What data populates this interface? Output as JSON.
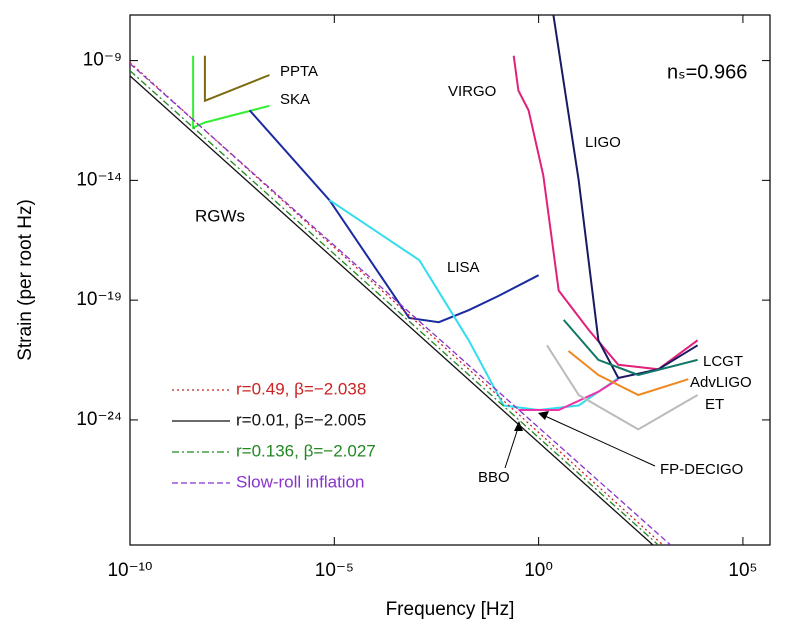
{
  "chart_data": {
    "type": "line",
    "xscale": "log",
    "yscale": "log",
    "x_label": "Frequency [Hz]",
    "y_label": "Strain (per root Hz)",
    "xlim": [
      1e-10,
      460000.0
    ],
    "ylim": [
      6e-30,
      8e-08
    ],
    "xticks": [
      {
        "value": 1e-10,
        "label": "10⁻¹⁰"
      },
      {
        "value": 1e-05,
        "label": "10⁻⁵"
      },
      {
        "value": 1,
        "label": "10⁰"
      },
      {
        "value": 100000.0,
        "label": "10⁵"
      }
    ],
    "yticks": [
      {
        "value": 1e-24,
        "label": "10⁻²⁴"
      },
      {
        "value": 1e-19,
        "label": "10⁻¹⁹"
      },
      {
        "value": 1e-14,
        "label": "10⁻¹⁴"
      },
      {
        "value": 1e-09,
        "label": "10⁻⁹"
      }
    ],
    "annotations": [
      "RGWs",
      "nₛ=0.966"
    ],
    "series": [
      {
        "name": "r=0.49, β=−2.038",
        "color": "#cc2222",
        "style": "dotted",
        "x": [
          1e-10,
          1100.0
        ],
        "values": [
          8.3e-10,
          6e-30
        ]
      },
      {
        "name": "r=0.01, β=−2.005",
        "color": "#111111",
        "style": "solid",
        "x": [
          1e-10,
          630
        ],
        "values": [
          2.3e-10,
          6e-30
        ]
      },
      {
        "name": "r=0.136, β=−2.027",
        "color": "#228822",
        "style": "dashdot",
        "x": [
          1e-10,
          850
        ],
        "values": [
          3.8e-10,
          6e-30
        ]
      },
      {
        "name": "Slow-roll inflation",
        "color": "#8833cc",
        "style": "dashed",
        "x": [
          1e-10,
          1700.0
        ],
        "values": [
          7.5e-10,
          6e-30
        ]
      }
    ],
    "detectors": [
      {
        "name": "PPTA",
        "color": "#7a6a10",
        "x": [
          6.8e-09,
          6.8e-09,
          2.6e-07
        ],
        "values": [
          1.6e-09,
          2.1e-11,
          2.5e-10
        ]
      },
      {
        "name": "SKA",
        "color": "#33ee33",
        "x": [
          3.5e-09,
          3.5e-09,
          6.8e-09,
          2.6e-07
        ],
        "values": [
          1.6e-09,
          1.6e-12,
          2.6e-12,
          1.3e-11
        ]
      },
      {
        "name": "LISA",
        "color": "#1a2aa0",
        "x": [
          8.5e-08,
          7.6e-06,
          0.00068,
          0.0036,
          0.0195,
          0.105,
          1
        ],
        "values": [
          8.3e-12,
          1.5e-15,
          1.8e-20,
          1.2e-20,
          3.8e-20,
          1.5e-19,
          1.1e-18
        ]
      },
      {
        "name": "BBO",
        "color": "#33ddee",
        "x": [
          7.6e-06,
          0.0012,
          0.0195,
          0.14,
          1,
          9.6,
          89
        ],
        "values": [
          1.5e-15,
          4.7e-18,
          2.1e-21,
          4e-24,
          2.6e-24,
          4e-24,
          5.6e-23
        ]
      },
      {
        "name": "FP-DECIGO",
        "color": "#ee33aa",
        "x": [
          0.32,
          3.1,
          29,
          89
        ],
        "values": [
          2.6e-24,
          2.6e-24,
          1.5e-23,
          5e-23
        ]
      },
      {
        "name": "VIRGO",
        "color": "#e0207a",
        "x": [
          0.245,
          0.32,
          0.57,
          1.3,
          3.1,
          17,
          89,
          850,
          7800.0
        ],
        "values": [
          1.6e-09,
          5.6e-11,
          8.3e-12,
          1.6e-14,
          2.5e-19,
          5.6e-21,
          2e-22,
          1.3e-22,
          2.1e-21
        ]
      },
      {
        "name": "LIGO",
        "color": "#1a1a60",
        "x": [
          2.3,
          9.6,
          29,
          89,
          850,
          7800.0
        ],
        "values": [
          8e-08,
          1e-14,
          2.1e-21,
          5.6e-23,
          1.3e-22,
          1.3e-21
        ]
      },
      {
        "name": "LCGT",
        "color": "#117766",
        "x": [
          4.1,
          29,
          275,
          7800.0
        ],
        "values": [
          1.5e-20,
          3.2e-22,
          7.5e-23,
          3.2e-22
        ]
      },
      {
        "name": "AdvLIGO",
        "color": "#ee8822",
        "x": [
          5.4,
          29,
          275,
          4600.0
        ],
        "values": [
          7.5e-22,
          7.5e-23,
          1.1e-23,
          5e-23
        ]
      },
      {
        "name": "ET",
        "color": "#bbbbbb",
        "x": [
          1.6,
          9.6,
          275,
          7800.0
        ],
        "values": [
          1.3e-21,
          1.1e-23,
          4e-25,
          1.1e-23
        ]
      }
    ]
  }
}
